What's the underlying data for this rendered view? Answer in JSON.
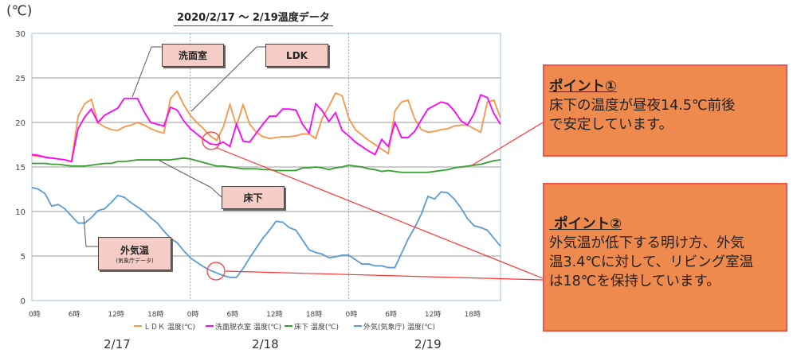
{
  "chart_data": {
    "type": "line",
    "title": "2020/2/17 ～ 2/19温度データ",
    "ylabel": "(℃)",
    "ylim": [
      0,
      30
    ],
    "yticks": [
      "0",
      "5",
      "10",
      "15",
      "20",
      "25",
      "30"
    ],
    "xticks": [
      "0時",
      "6時",
      "12時",
      "18時",
      "0時",
      "6時",
      "12時",
      "18時",
      "0時",
      "6時",
      "12時",
      "18時"
    ],
    "days": [
      "2/17",
      "2/18",
      "2/19"
    ],
    "grid": true,
    "legend_position": "bottom",
    "x_hours": "0-71",
    "series": [
      {
        "name": "ＬＤＫ 温度(℃)",
        "color": "#f79646",
        "values": [
          16.3,
          16.2,
          16.1,
          16.0,
          15.9,
          15.8,
          15.6,
          20.7,
          22.1,
          22.6,
          20.0,
          19.5,
          19.2,
          19.1,
          19.5,
          19.7,
          20.0,
          19.7,
          19.3,
          19.0,
          18.8,
          22.7,
          23.5,
          22.0,
          20.8,
          20.0,
          19.3,
          18.5,
          18.0,
          19.5,
          22.0,
          19.6,
          22.0,
          19.8,
          18.9,
          18.4,
          18.2,
          18.3,
          18.4,
          18.4,
          18.5,
          18.7,
          18.7,
          18.2,
          20.5,
          21.8,
          23.3,
          23.0,
          20.5,
          19.2,
          18.6,
          18.0,
          17.5,
          17.0,
          16.5,
          21.3,
          22.3,
          22.5,
          20.4,
          19.2,
          18.9,
          19.0,
          19.2,
          19.3,
          19.6,
          19.7,
          19.7,
          19.3,
          18.9,
          22.3,
          22.5,
          20.5
        ]
      },
      {
        "name": "洗面脱衣室 温度(℃)",
        "color": "#ff00ff",
        "values": [
          16.4,
          16.3,
          16.1,
          16.0,
          15.9,
          15.8,
          15.6,
          19.3,
          20.6,
          21.5,
          20.0,
          20.8,
          21.2,
          21.6,
          22.7,
          22.7,
          22.7,
          21.2,
          20.0,
          19.8,
          19.6,
          21.7,
          21.4,
          20.2,
          19.3,
          18.7,
          18.1,
          17.6,
          17.5,
          17.8,
          17.3,
          19.8,
          17.9,
          17.8,
          18.8,
          19.8,
          20.7,
          20.7,
          21.5,
          21.5,
          21.4,
          19.8,
          18.8,
          22.1,
          21.3,
          20.1,
          21.1,
          19.1,
          18.5,
          17.8,
          17.3,
          16.8,
          16.4,
          18.1,
          17.3,
          20.0,
          18.3,
          18.3,
          19.0,
          20.3,
          21.5,
          21.9,
          22.3,
          22.1,
          21.3,
          20.2,
          19.7,
          21.0,
          23.1,
          22.8,
          21.0,
          19.8
        ]
      },
      {
        "name": "床下 温度(℃)",
        "color": "#33a02c",
        "values": [
          15.4,
          15.4,
          15.4,
          15.3,
          15.3,
          15.2,
          15.1,
          15.1,
          15.1,
          15.2,
          15.3,
          15.4,
          15.4,
          15.6,
          15.6,
          15.7,
          15.8,
          15.8,
          15.8,
          15.8,
          15.8,
          15.8,
          15.9,
          16.0,
          15.9,
          15.7,
          15.5,
          15.3,
          15.1,
          15.1,
          15.0,
          14.9,
          14.8,
          14.8,
          14.8,
          14.7,
          14.7,
          14.6,
          14.6,
          14.6,
          14.6,
          14.9,
          14.9,
          15.0,
          14.9,
          14.7,
          14.9,
          15.0,
          15.2,
          15.1,
          15.0,
          14.8,
          14.7,
          14.5,
          14.6,
          14.5,
          14.4,
          14.4,
          14.4,
          14.4,
          14.4,
          14.5,
          14.6,
          14.7,
          14.9,
          15.0,
          15.1,
          15.2,
          15.3,
          15.5,
          15.7,
          15.8
        ]
      },
      {
        "name": "外気(気象庁) 温度(℃)",
        "color": "#5b9bd5",
        "values": [
          12.7,
          12.5,
          12.0,
          10.6,
          10.8,
          10.3,
          9.5,
          8.7,
          8.7,
          9.3,
          10.1,
          10.3,
          11.0,
          11.8,
          11.6,
          11.0,
          10.5,
          10.0,
          9.3,
          8.7,
          7.8,
          7.0,
          6.5,
          5.6,
          4.8,
          4.3,
          3.8,
          3.4,
          3.1,
          2.8,
          2.6,
          2.6,
          3.6,
          4.8,
          5.9,
          7.0,
          7.9,
          8.9,
          8.8,
          8.2,
          7.9,
          6.8,
          5.7,
          5.4,
          5.2,
          4.8,
          4.9,
          5.1,
          5.1,
          4.6,
          4.1,
          4.1,
          3.9,
          3.9,
          3.7,
          3.7,
          5.3,
          6.9,
          8.2,
          9.7,
          11.7,
          11.4,
          12.2,
          12.1,
          11.4,
          10.4,
          9.2,
          8.4,
          8.2,
          7.9,
          7.0,
          6.1
        ]
      }
    ]
  },
  "labels": {
    "washroom": "洗面室",
    "ldk": "LDK",
    "floor": "床下",
    "outside": "外気温",
    "outside_sub": "(気象庁データ)"
  },
  "points": [
    {
      "heading": "ポイント①",
      "lines": [
        "床下の温度が昼夜14.5℃前後",
        "で安定しています。"
      ]
    },
    {
      "heading": " ポイント②",
      "lines": [
        "外気温が低下する明け方、外気",
        "温3.4℃に対して、リビング室温",
        "は18℃を保持しています。"
      ]
    }
  ]
}
